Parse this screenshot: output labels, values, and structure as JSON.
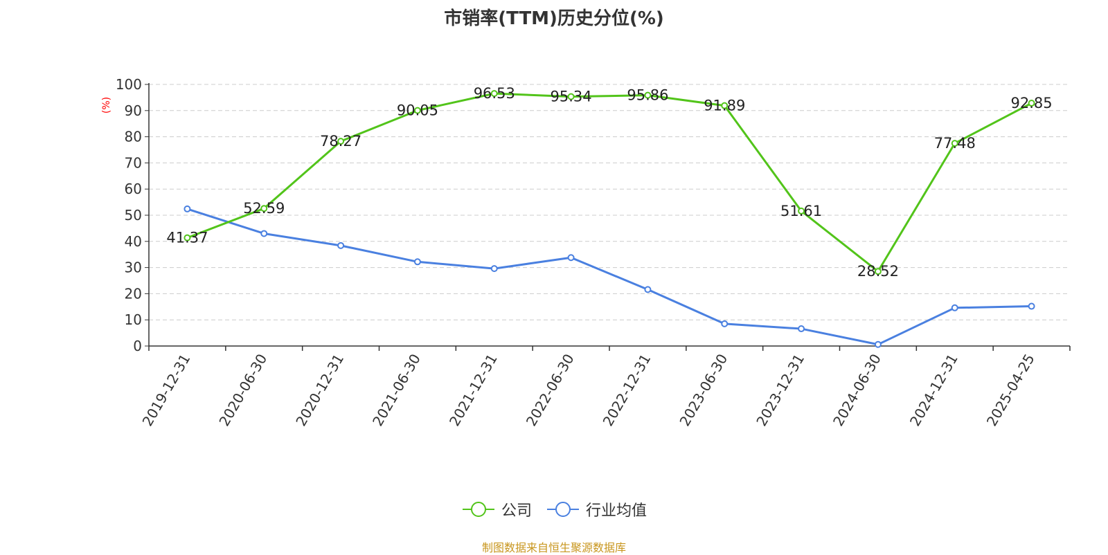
{
  "chart_data": {
    "type": "line",
    "title": "市销率(TTM)历史分位(%)",
    "ylabel": "(%)",
    "xlabel": "",
    "ylim": [
      0,
      100
    ],
    "yticks": [
      "0",
      "10",
      "20",
      "30",
      "40",
      "50",
      "60",
      "70",
      "80",
      "90",
      "100"
    ],
    "categories": [
      "2019-12-31",
      "2020-06-30",
      "2020-12-31",
      "2021-06-30",
      "2021-12-31",
      "2022-06-30",
      "2022-12-31",
      "2023-06-30",
      "2023-12-31",
      "2024-06-30",
      "2024-12-31",
      "2025-04-25"
    ],
    "series": [
      {
        "name": "公司",
        "color": "#52c41a",
        "show_labels": true,
        "values": [
          41.37,
          52.59,
          78.27,
          90.05,
          96.53,
          95.34,
          95.86,
          91.89,
          51.61,
          28.52,
          77.48,
          92.85
        ]
      },
      {
        "name": "行业均值",
        "color": "#4a80e0",
        "show_labels": false,
        "values": [
          52.4,
          43.0,
          38.4,
          32.2,
          29.6,
          33.8,
          21.6,
          8.5,
          6.6,
          0.6,
          14.6,
          15.2
        ]
      }
    ],
    "grid": true,
    "legend_position": "bottom"
  },
  "legend": {
    "company": "公司",
    "industry": "行业均值"
  },
  "source": "制图数据来自恒生聚源数据库"
}
